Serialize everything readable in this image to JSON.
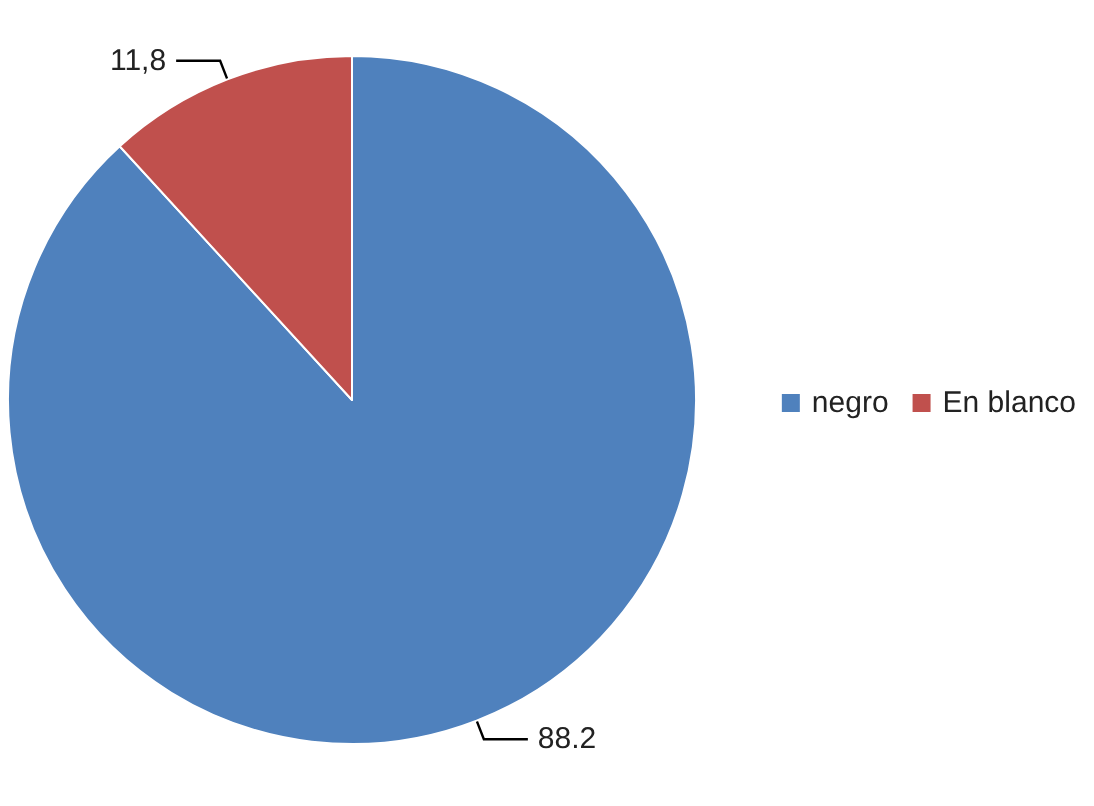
{
  "chart_data": {
    "type": "pie",
    "categories": [
      "negro",
      "En blanco"
    ],
    "values": [
      88.2,
      11.8
    ],
    "value_labels": [
      "88.2",
      "11,8"
    ],
    "colors": [
      "#4f81bd",
      "#c0504d"
    ],
    "legend": "right"
  }
}
